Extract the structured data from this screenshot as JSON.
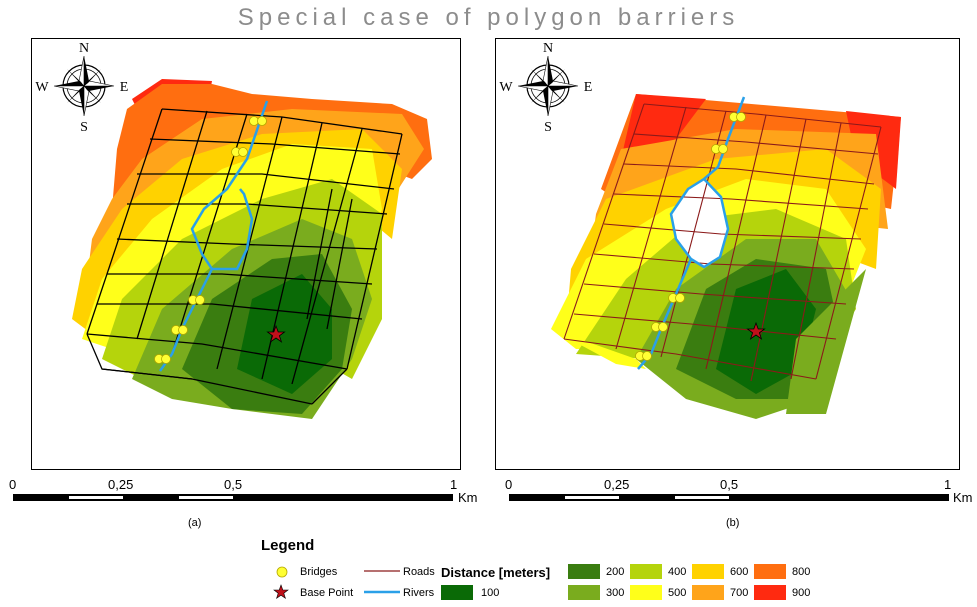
{
  "title": "Special case of polygon barriers",
  "panels": [
    {
      "caption": "(a)"
    },
    {
      "caption": "(b)"
    }
  ],
  "compass": {
    "north": "N",
    "south": "S",
    "east": "E",
    "west": "W"
  },
  "scalebar": {
    "ticks": [
      "0",
      "0,25",
      "0,5",
      "1"
    ],
    "unit": "Km"
  },
  "legend": {
    "title": "Legend",
    "bridges": "Bridges",
    "base_point": "Base Point",
    "roads": "Roads",
    "rivers": "Rivers",
    "distance_title": "Distance [meters]",
    "classes": [
      {
        "label": "100",
        "color": "#0a6a06"
      },
      {
        "label": "200",
        "color": "#3a7d10"
      },
      {
        "label": "300",
        "color": "#7aac1e"
      },
      {
        "label": "400",
        "color": "#b5d40c"
      },
      {
        "label": "500",
        "color": "#ffff1a"
      },
      {
        "label": "600",
        "color": "#ffd200"
      },
      {
        "label": "700",
        "color": "#ffa41a"
      },
      {
        "label": "800",
        "color": "#ff6e10"
      },
      {
        "label": "900",
        "color": "#ff2a10"
      }
    ]
  },
  "colors": {
    "road_a": "#000000",
    "road_b": "#8b1a1a",
    "river": "#2aa0e8",
    "bridge": "#ffff33",
    "base_point": "#c0101a"
  }
}
